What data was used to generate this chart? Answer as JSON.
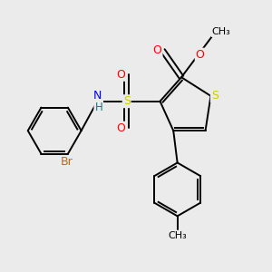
{
  "background_color": "#ebebeb",
  "fig_size": [
    3.0,
    3.0
  ],
  "dpi": 100,
  "atom_colors": {
    "S": "#cccc00",
    "O": "#ff0000",
    "N": "#0000ff",
    "Br": "#cc6600",
    "H": "#008080",
    "C": "#000000"
  },
  "bond_color": "#000000",
  "bond_width": 1.4
}
